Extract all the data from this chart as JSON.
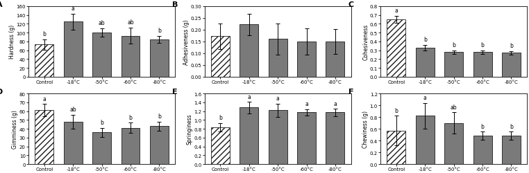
{
  "panels": [
    {
      "label": "A",
      "ylabel": "Hardness (g)",
      "ylim": [
        0,
        160
      ],
      "yticks": [
        0,
        20,
        40,
        60,
        80,
        100,
        120,
        140,
        160
      ],
      "categories": [
        "Control",
        "-18°C",
        "-50°C",
        "-60°C",
        "-80°C"
      ],
      "values": [
        73,
        125,
        100,
        93,
        85
      ],
      "errors": [
        12,
        18,
        10,
        18,
        8
      ],
      "sig_labels": [
        "b",
        "a",
        "ab",
        "ab",
        "b"
      ]
    },
    {
      "label": "B",
      "ylabel": "Adhesiveness (g)",
      "ylim": [
        0.0,
        0.3
      ],
      "yticks": [
        0.0,
        0.05,
        0.1,
        0.15,
        0.2,
        0.25,
        0.3
      ],
      "categories": [
        "Control",
        "-18°C",
        "-50°C",
        "-60°C",
        "-80°C"
      ],
      "values": [
        0.172,
        0.222,
        0.16,
        0.15,
        0.15
      ],
      "errors": [
        0.055,
        0.045,
        0.065,
        0.055,
        0.052
      ],
      "sig_labels": [
        "",
        "",
        "",
        "",
        ""
      ]
    },
    {
      "label": "C",
      "ylabel": "Cohesiveness",
      "ylim": [
        0.0,
        0.8
      ],
      "yticks": [
        0.0,
        0.1,
        0.2,
        0.3,
        0.4,
        0.5,
        0.6,
        0.7,
        0.8
      ],
      "categories": [
        "Control",
        "-18°C",
        "-50°C",
        "-60°C",
        "-80°C"
      ],
      "values": [
        0.65,
        0.33,
        0.28,
        0.28,
        0.27
      ],
      "errors": [
        0.04,
        0.03,
        0.02,
        0.02,
        0.02
      ],
      "sig_labels": [
        "a",
        "b",
        "b",
        "b",
        "b"
      ]
    },
    {
      "label": "D",
      "ylabel": "Gimminess (g)",
      "ylim": [
        0,
        80
      ],
      "yticks": [
        0,
        10,
        20,
        30,
        40,
        50,
        60,
        70,
        80
      ],
      "categories": [
        "Control",
        "-18°C",
        "-50°C",
        "-60°C",
        "-80°C"
      ],
      "values": [
        61,
        48,
        36,
        41,
        43
      ],
      "errors": [
        7,
        8,
        5,
        6,
        5
      ],
      "sig_labels": [
        "a",
        "ab",
        "b",
        "b",
        "b"
      ]
    },
    {
      "label": "E",
      "ylabel": "Springiness",
      "ylim": [
        0.0,
        1.6
      ],
      "yticks": [
        0.0,
        0.2,
        0.4,
        0.6,
        0.8,
        1.0,
        1.2,
        1.4,
        1.6
      ],
      "categories": [
        "Control",
        "-18°C",
        "-50°C",
        "-60°C",
        "-80°C"
      ],
      "values": [
        0.83,
        1.28,
        1.22,
        1.17,
        1.17
      ],
      "errors": [
        0.1,
        0.13,
        0.15,
        0.07,
        0.08
      ],
      "sig_labels": [
        "b",
        "a",
        "a",
        "a",
        "a"
      ]
    },
    {
      "label": "F",
      "ylabel": "Chewiness (g)",
      "ylim": [
        0.0,
        1.2
      ],
      "yticks": [
        0.0,
        0.2,
        0.4,
        0.6,
        0.8,
        1.0,
        1.2
      ],
      "categories": [
        "Control",
        "-18°C",
        "-50°C",
        "-60°C",
        "-80°C"
      ],
      "values": [
        0.57,
        0.82,
        0.7,
        0.48,
        0.48
      ],
      "errors": [
        0.25,
        0.22,
        0.18,
        0.07,
        0.07
      ],
      "sig_labels": [
        "b",
        "a",
        "ab",
        "b",
        "b"
      ]
    }
  ],
  "bar_color_frozen": "#7a7a7a",
  "hatch_pattern": "////",
  "bar_edgecolor": "#1a1a1a",
  "fig_bg": "#ffffff",
  "sig_fontsize": 5.5,
  "axis_label_fontsize": 5.5,
  "tick_fontsize": 5.0,
  "panel_label_fontsize": 8.0
}
